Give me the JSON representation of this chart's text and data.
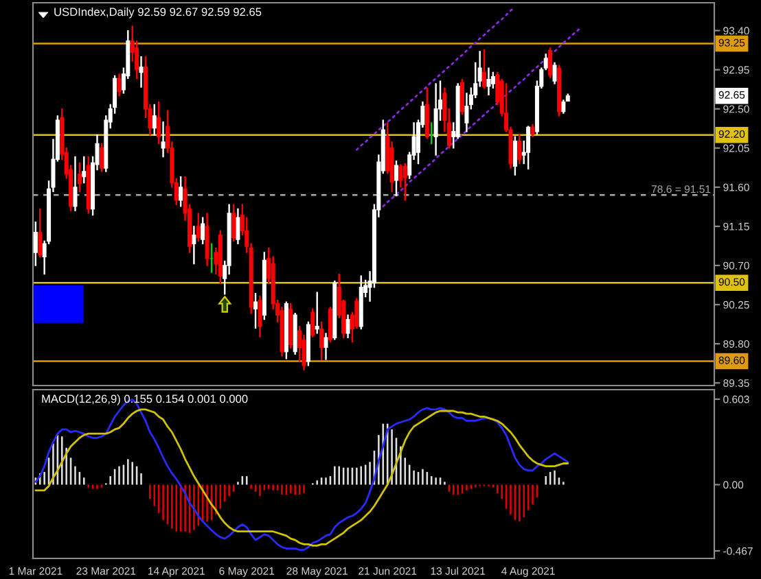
{
  "chart_data": [
    {
      "type": "candlestick",
      "title": "USDIndex,Daily 92.59 92.67 92.59 92.65",
      "categories": [
        null,
        null,
        null,
        null,
        null,
        null,
        null,
        null,
        null,
        null,
        null,
        null,
        null,
        null,
        null,
        null,
        null,
        null,
        null,
        null,
        null,
        null,
        null,
        null,
        null,
        null,
        null,
        null,
        null,
        null,
        null,
        null,
        null,
        null,
        null,
        null,
        null,
        null,
        null,
        null,
        null,
        null,
        null,
        null,
        null,
        null,
        null,
        null,
        null,
        null,
        null,
        null,
        null,
        null,
        null,
        null,
        null,
        null,
        null,
        null,
        null,
        null,
        null,
        null,
        null,
        null,
        null,
        null,
        null,
        null,
        null,
        null,
        null,
        null,
        null,
        null,
        null,
        null,
        null,
        null,
        null,
        null,
        null,
        null,
        null,
        null,
        null,
        null,
        null,
        null,
        null,
        null,
        null,
        null,
        null,
        null,
        null,
        null,
        null,
        null,
        null,
        null,
        null,
        null,
        null,
        null,
        null,
        null,
        null,
        null,
        null,
        null,
        null,
        null,
        null,
        null,
        null,
        null,
        null,
        null,
        null,
        null,
        null,
        null,
        null,
        null,
        null,
        null,
        null,
        null,
        null,
        null,
        null,
        null,
        null,
        null,
        null,
        null,
        null,
        null,
        null,
        null,
        null,
        null,
        null,
        null,
        null,
        null,
        null,
        null,
        null,
        null,
        null,
        null,
        null
      ],
      "ohlc": [
        [
          90.85,
          91.2,
          90.7,
          91.08
        ],
        [
          91.08,
          91.35,
          90.8,
          90.82
        ],
        [
          90.8,
          90.98,
          90.6,
          90.95
        ],
        [
          90.98,
          91.67,
          90.95,
          91.58
        ],
        [
          91.6,
          92.15,
          91.55,
          91.92
        ],
        [
          91.92,
          92.42,
          91.9,
          92.37
        ],
        [
          92.4,
          92.5,
          91.92,
          91.98
        ],
        [
          92.0,
          92.05,
          91.7,
          91.75
        ],
        [
          91.8,
          91.85,
          91.33,
          91.38
        ],
        [
          91.38,
          91.95,
          91.33,
          91.6
        ],
        [
          91.75,
          91.88,
          91.55,
          91.64
        ],
        [
          91.72,
          91.95,
          91.65,
          91.78
        ],
        [
          91.85,
          91.95,
          91.3,
          91.35
        ],
        [
          91.35,
          91.95,
          91.28,
          91.88
        ],
        [
          91.86,
          92.2,
          91.8,
          92.1
        ],
        [
          92.05,
          92.1,
          91.78,
          91.82
        ],
        [
          91.82,
          92.42,
          91.78,
          92.37
        ],
        [
          92.35,
          92.55,
          92.28,
          92.5
        ],
        [
          92.52,
          92.88,
          92.45,
          92.85
        ],
        [
          92.85,
          92.9,
          92.65,
          92.7
        ],
        [
          92.72,
          92.97,
          92.68,
          92.9
        ],
        [
          92.88,
          93.4,
          92.85,
          93.28
        ],
        [
          93.28,
          93.45,
          93.05,
          93.15
        ],
        [
          93.2,
          93.28,
          92.85,
          92.95
        ],
        [
          92.92,
          93.1,
          92.75,
          92.98
        ],
        [
          92.98,
          93.1,
          92.4,
          92.5
        ],
        [
          92.5,
          92.55,
          92.2,
          92.28
        ],
        [
          92.28,
          92.55,
          92.2,
          92.42
        ],
        [
          92.4,
          92.58,
          92.1,
          92.18
        ],
        [
          92.05,
          92.35,
          91.95,
          92.12
        ],
        [
          92.3,
          92.48,
          92.0,
          92.05
        ],
        [
          92.05,
          92.12,
          91.6,
          91.65
        ],
        [
          91.65,
          91.7,
          91.4,
          91.45
        ],
        [
          91.45,
          91.72,
          91.38,
          91.6
        ],
        [
          91.58,
          91.72,
          91.22,
          91.3
        ],
        [
          91.35,
          91.4,
          90.85,
          90.92
        ],
        [
          90.95,
          91.15,
          90.72,
          91.05
        ],
        [
          91.15,
          91.3,
          90.98,
          91.02
        ],
        [
          91.0,
          91.25,
          90.95,
          91.18
        ],
        [
          91.15,
          91.3,
          90.7,
          90.78
        ],
        [
          90.78,
          90.95,
          90.62,
          90.78
        ],
        [
          90.85,
          90.9,
          90.6,
          90.72
        ],
        [
          91.05,
          91.1,
          90.5,
          90.58
        ],
        [
          90.55,
          90.75,
          90.37,
          90.7
        ],
        [
          90.7,
          91.4,
          90.6,
          91.3
        ],
        [
          91.3,
          91.4,
          90.98,
          91.02
        ],
        [
          91.0,
          91.35,
          90.95,
          91.25
        ],
        [
          91.28,
          91.4,
          91.05,
          91.1
        ],
        [
          91.1,
          91.25,
          90.85,
          90.92
        ],
        [
          90.9,
          90.95,
          90.15,
          90.22
        ],
        [
          90.2,
          90.38,
          89.98,
          90.28
        ],
        [
          90.3,
          90.35,
          89.88,
          90.0
        ],
        [
          90.13,
          90.85,
          90.08,
          90.76
        ],
        [
          90.78,
          90.9,
          90.5,
          90.55
        ],
        [
          90.72,
          90.8,
          90.2,
          90.26
        ],
        [
          90.26,
          90.3,
          90.05,
          90.13
        ],
        [
          90.18,
          90.22,
          89.66,
          89.71
        ],
        [
          89.71,
          90.28,
          89.63,
          90.26
        ],
        [
          90.2,
          90.26,
          89.75,
          89.79
        ],
        [
          89.71,
          90.15,
          89.68,
          90.13
        ],
        [
          89.95,
          90.0,
          89.6,
          89.76
        ],
        [
          89.84,
          89.9,
          89.5,
          89.55
        ],
        [
          89.6,
          90.05,
          89.55,
          90.02
        ],
        [
          90.16,
          90.2,
          89.88,
          89.9
        ],
        [
          89.97,
          90.39,
          89.92,
          90.0
        ],
        [
          89.97,
          90.05,
          89.62,
          89.76
        ],
        [
          89.76,
          89.92,
          89.62,
          89.87
        ],
        [
          90.2,
          90.22,
          89.82,
          89.85
        ],
        [
          89.87,
          90.52,
          89.85,
          90.5
        ],
        [
          90.45,
          90.6,
          90.1,
          90.13
        ],
        [
          90.29,
          90.3,
          89.87,
          89.92
        ],
        [
          89.92,
          90.13,
          89.87,
          90.08
        ],
        [
          90.13,
          90.16,
          89.82,
          89.97
        ],
        [
          90.29,
          90.32,
          89.98,
          90.0
        ],
        [
          90.0,
          90.58,
          89.97,
          90.45
        ],
        [
          90.39,
          90.53,
          90.34,
          90.47
        ],
        [
          90.45,
          90.63,
          90.29,
          90.52
        ],
        [
          90.5,
          91.4,
          90.45,
          91.34
        ],
        [
          91.34,
          91.97,
          91.26,
          91.89
        ],
        [
          91.79,
          92.37,
          91.76,
          92.26
        ],
        [
          92.18,
          92.34,
          91.76,
          91.79
        ],
        [
          92.05,
          92.12,
          91.55,
          91.66
        ],
        [
          91.68,
          91.9,
          91.5,
          91.85
        ],
        [
          91.84,
          91.86,
          91.6,
          91.68
        ],
        [
          91.84,
          91.87,
          91.45,
          91.71
        ],
        [
          91.74,
          92.0,
          91.7,
          91.97
        ],
        [
          91.97,
          92.34,
          91.92,
          92.18
        ],
        [
          92.0,
          92.37,
          91.87,
          92.34
        ],
        [
          92.32,
          92.58,
          92.29,
          92.53
        ],
        [
          92.55,
          92.74,
          92.16,
          92.18
        ],
        [
          92.2,
          92.34,
          92.1,
          92.2
        ],
        [
          92.18,
          92.79,
          91.97,
          92.5
        ],
        [
          92.5,
          92.82,
          92.37,
          92.6
        ],
        [
          92.68,
          92.74,
          92.24,
          92.37
        ],
        [
          92.34,
          92.5,
          92.05,
          92.08
        ],
        [
          92.18,
          92.34,
          92.05,
          92.24
        ],
        [
          92.18,
          92.79,
          92.16,
          92.76
        ],
        [
          92.8,
          92.84,
          92.44,
          92.47
        ],
        [
          92.34,
          92.68,
          92.24,
          92.53
        ],
        [
          92.55,
          92.74,
          92.5,
          92.66
        ],
        [
          92.66,
          93.03,
          92.63,
          92.79
        ],
        [
          92.82,
          93.16,
          92.76,
          92.97
        ],
        [
          92.92,
          93.18,
          92.74,
          92.76
        ],
        [
          92.76,
          92.97,
          92.66,
          92.84
        ],
        [
          92.79,
          92.92,
          92.74,
          92.87
        ],
        [
          92.89,
          92.92,
          92.55,
          92.58
        ],
        [
          92.82,
          92.84,
          92.42,
          92.45
        ],
        [
          92.45,
          92.79,
          92.24,
          92.26
        ],
        [
          92.26,
          92.29,
          91.82,
          91.87
        ],
        [
          91.84,
          92.18,
          91.74,
          92.13
        ],
        [
          92.13,
          92.21,
          91.87,
          91.92
        ],
        [
          91.97,
          92.13,
          91.87,
          92.0
        ],
        [
          92.0,
          92.3,
          91.81,
          92.29
        ],
        [
          92.29,
          92.32,
          92.18,
          92.21
        ],
        [
          92.24,
          92.82,
          92.21,
          92.76
        ],
        [
          92.76,
          92.97,
          92.74,
          92.95
        ],
        [
          92.97,
          93.13,
          92.95,
          93.08
        ],
        [
          93.17,
          93.2,
          92.86,
          92.89
        ],
        [
          92.82,
          93.03,
          92.79,
          93.0
        ],
        [
          92.97,
          93.0,
          92.42,
          92.47
        ],
        [
          92.47,
          92.6,
          92.45,
          92.58
        ],
        [
          92.59,
          92.67,
          92.59,
          92.65
        ],
        null,
        null,
        null,
        null,
        null,
        null,
        null,
        null,
        null,
        null,
        null,
        null,
        null,
        null,
        null,
        null,
        null,
        null,
        null,
        null,
        null,
        null,
        null,
        null,
        null,
        null,
        null,
        null,
        null,
        null,
        null,
        null,
        null
      ],
      "colors": [
        "#ffffff",
        "#ff0000",
        "#ffffff",
        "#ffffff",
        "#ffffff",
        "#ffffff",
        "#ff0000",
        "#ff0000",
        "#ff0000",
        "#ffffff",
        "#ff0000",
        "#ffffff",
        "#ff0000",
        "#ffffff",
        "#ffffff",
        "#ff0000",
        "#ffffff",
        "#ffffff",
        "#ffffff",
        "#ff0000",
        "#ffffff",
        "#ffffff",
        "#ff0000",
        "#ff0000",
        "#ffffff",
        "#ff0000",
        "#ff0000",
        "#ffffff",
        "#ff0000",
        "#ffffff",
        "#ff0000",
        "#ff0000",
        "#ff0000",
        "#ffffff",
        "#ff0000",
        "#ff0000",
        "#ffffff",
        "#ff0000",
        "#ffffff",
        "#ff0000",
        "#00d000",
        "#ff0000",
        "#ff0000",
        "#ffffff",
        "#ffffff",
        "#ff0000",
        "#ffffff",
        "#ff0000",
        "#ff0000",
        "#ff0000",
        "#ffffff",
        "#ff0000",
        "#ffffff",
        "#ff0000",
        "#ff0000",
        "#ff0000",
        "#ff0000",
        "#ffffff",
        "#ff0000",
        "#ffffff",
        "#ff0000",
        "#ff0000",
        "#ffffff",
        "#ff0000",
        "#ffffff",
        "#ff0000",
        "#ffffff",
        "#ff0000",
        "#ffffff",
        "#ff0000",
        "#ff0000",
        "#ffffff",
        "#ff0000",
        "#ff0000",
        "#ffffff",
        "#ffffff",
        "#ffffff",
        "#ffffff",
        "#ffffff",
        "#ffffff",
        "#ff0000",
        "#ff0000",
        "#ffffff",
        "#ff0000",
        "#ff0000",
        "#ffffff",
        "#ffffff",
        "#ffffff",
        "#ffffff",
        "#ff0000",
        "#00d000",
        "#ffffff",
        "#ffffff",
        "#ff0000",
        "#ff0000",
        "#ffffff",
        "#ffffff",
        "#ff0000",
        "#ffffff",
        "#ffffff",
        "#ffffff",
        "#ffffff",
        "#ff0000",
        "#ffffff",
        "#ffffff",
        "#ff0000",
        "#ff0000",
        "#ff0000",
        "#ff0000",
        "#ffffff",
        "#ff0000",
        "#ffffff",
        "#ffffff",
        "#ff0000",
        "#ffffff",
        "#ffffff",
        "#ffffff",
        "#ff0000",
        "#ffffff",
        "#ff0000",
        "#ffffff",
        "#ffffff",
        null,
        null,
        null,
        null,
        null,
        null,
        null,
        null,
        null,
        null,
        null,
        null,
        null,
        null,
        null,
        null,
        null,
        null,
        null,
        null,
        null,
        null,
        null,
        null,
        null,
        null,
        null,
        null,
        null,
        null,
        null,
        null,
        null
      ],
      "series": [
        {
          "type": "line",
          "color": "#8a2be2",
          "line_style": "dotted",
          "values": [
            null,
            null,
            null,
            null,
            null,
            null,
            null,
            null,
            null,
            null,
            null,
            null,
            null,
            null,
            null,
            null,
            null,
            null,
            null,
            null,
            null,
            null,
            null,
            null,
            null,
            null,
            null,
            null,
            null,
            null,
            null,
            null,
            null,
            null,
            null,
            null,
            null,
            null,
            null,
            null,
            null,
            null,
            null,
            null,
            null,
            null,
            null,
            null,
            null,
            null,
            null,
            null,
            null,
            null,
            null,
            null,
            null,
            null,
            null,
            null,
            null,
            null,
            null,
            null,
            null,
            null,
            null,
            null,
            null,
            null,
            null,
            null,
            null,
            92.03,
            92.08,
            92.12,
            92.17,
            92.21,
            92.26,
            92.3,
            92.35,
            92.39,
            92.44,
            92.49,
            92.53,
            92.58,
            92.62,
            92.67,
            92.71,
            92.76,
            92.81,
            92.85,
            92.9,
            92.94,
            92.99,
            93.03,
            93.08,
            93.12,
            93.17,
            93.22,
            93.26,
            93.31,
            93.35,
            93.4,
            93.44,
            93.49,
            93.53,
            93.58,
            93.63,
            93.67,
            null,
            null,
            null,
            null,
            null,
            null,
            null,
            null,
            null,
            null,
            null,
            null,
            null,
            null,
            null,
            null,
            null,
            null,
            null,
            null,
            null,
            null,
            null,
            null,
            null,
            null,
            null,
            null,
            null,
            null,
            null,
            null,
            null,
            null,
            null,
            null,
            null,
            null,
            null,
            null,
            null,
            null,
            null,
            null,
            null
          ]
        },
        {
          "type": "line",
          "color": "#8a2be2",
          "line_style": "dotted",
          "values": [
            null,
            null,
            null,
            null,
            null,
            null,
            null,
            null,
            null,
            null,
            null,
            null,
            null,
            null,
            null,
            null,
            null,
            null,
            null,
            null,
            null,
            null,
            null,
            null,
            null,
            null,
            null,
            null,
            null,
            null,
            null,
            null,
            null,
            null,
            null,
            null,
            null,
            null,
            null,
            null,
            null,
            null,
            null,
            null,
            null,
            null,
            null,
            null,
            null,
            null,
            null,
            null,
            null,
            null,
            null,
            null,
            null,
            null,
            null,
            null,
            null,
            null,
            null,
            null,
            null,
            null,
            null,
            null,
            null,
            null,
            null,
            null,
            null,
            null,
            null,
            null,
            null,
            null,
            null,
            91.38,
            91.43,
            91.47,
            91.52,
            91.56,
            91.61,
            91.66,
            91.7,
            91.75,
            91.79,
            91.84,
            91.88,
            91.93,
            91.98,
            92.02,
            92.07,
            92.11,
            92.16,
            92.2,
            92.25,
            92.3,
            92.34,
            92.39,
            92.43,
            92.48,
            92.52,
            92.57,
            92.62,
            92.66,
            92.71,
            92.75,
            92.8,
            92.84,
            92.89,
            92.94,
            92.98,
            93.03,
            93.07,
            93.12,
            93.16,
            93.21,
            93.26,
            93.3,
            93.35,
            93.39,
            93.44,
            null,
            null,
            null,
            null,
            null,
            null,
            null,
            null,
            null,
            null,
            null,
            null,
            null,
            null,
            null,
            null,
            null,
            null,
            null,
            null,
            null,
            null,
            null,
            null,
            null,
            null,
            null,
            null,
            null,
            null
          ]
        }
      ],
      "ylim": [
        89.32,
        93.72
      ],
      "yticks": [
        {
          "value": 93.4,
          "label": "93.40"
        },
        92.95,
        {
          "value": 92.5,
          "label": "92.50"
        },
        92.05,
        {
          "value": 91.6,
          "label": "91.60"
        },
        91.15,
        {
          "value": 90.7,
          "label": "90.70"
        },
        90.25,
        {
          "value": 89.8,
          "label": "89.80"
        },
        89.35
      ],
      "ref_lines": [
        {
          "axis": "y",
          "value": 93.25,
          "label": "93.25",
          "color": "#e09a10"
        },
        {
          "axis": "y",
          "value": 92.2,
          "label": "92.20",
          "color": "#e0c010"
        },
        {
          "axis": "y",
          "value": 91.51,
          "label": "78.6 = 91.51",
          "color": "#a8a8a8",
          "line_style": "dashed"
        },
        {
          "axis": "y",
          "value": 90.5,
          "label": "90.50",
          "color": "#e0c010"
        },
        {
          "axis": "y",
          "value": 89.6,
          "label": "89.60",
          "color": "#e09a10"
        }
      ],
      "annotations": [
        {
          "text": "92.65",
          "y": 92.65
        }
      ]
    },
    {
      "type": "bar",
      "title": "MACD(12,26,9) 0.155 0.154 0.001 0.000",
      "categories": [
        "1 Mar 2021",
        null,
        null,
        null,
        null,
        null,
        null,
        null,
        null,
        null,
        null,
        null,
        null,
        null,
        null,
        null,
        "23 Mar 2021",
        null,
        null,
        null,
        null,
        null,
        null,
        null,
        null,
        null,
        null,
        null,
        null,
        null,
        null,
        null,
        "14 Apr 2021",
        null,
        null,
        null,
        null,
        null,
        null,
        null,
        null,
        null,
        null,
        null,
        null,
        null,
        null,
        null,
        "6 May 2021",
        null,
        null,
        null,
        null,
        null,
        null,
        null,
        null,
        null,
        null,
        null,
        null,
        null,
        null,
        null,
        "28 May 2021",
        null,
        null,
        null,
        null,
        null,
        null,
        null,
        null,
        null,
        null,
        null,
        null,
        null,
        null,
        null,
        "21 Jun 2021",
        null,
        null,
        null,
        null,
        null,
        null,
        null,
        null,
        null,
        null,
        null,
        null,
        null,
        null,
        null,
        "13 Jul 2021",
        null,
        null,
        null,
        null,
        null,
        null,
        null,
        null,
        null,
        null,
        null,
        null,
        null,
        null,
        null,
        "4 Aug 2021",
        null,
        null,
        null,
        null,
        null,
        null,
        null,
        null,
        null,
        null,
        null,
        null,
        null,
        null,
        null,
        null,
        null,
        null,
        null,
        null,
        null,
        null,
        null,
        null,
        null,
        null,
        null,
        null,
        null,
        null,
        null,
        null,
        null,
        null,
        null,
        null,
        null,
        null,
        null,
        null,
        null,
        null
      ],
      "series": [
        {
          "color": "#e0e0e0",
          "values": [
            0.05,
            0.08,
            0.09,
            0.19,
            0.29,
            0.35,
            0.34,
            0.26,
            0.19,
            0.13,
            0.09,
            0.05,
            null,
            null,
            null,
            null,
            0.01,
            0.06,
            0.11,
            0.13,
            0.14,
            0.18,
            0.16,
            0.13,
            0.08,
            null,
            null,
            null,
            null,
            null,
            null,
            null,
            null,
            null,
            null,
            null,
            null,
            null,
            null,
            null,
            null,
            null,
            null,
            null,
            null,
            null,
            0.02,
            0.06,
            0.06,
            null,
            null,
            null,
            null,
            null,
            null,
            null,
            null,
            null,
            null,
            null,
            null,
            null,
            null,
            0.01,
            0.03,
            0.05,
            0.05,
            0.06,
            0.13,
            0.13,
            0.12,
            0.12,
            0.12,
            0.12,
            0.13,
            0.14,
            0.16,
            0.24,
            0.35,
            0.43,
            0.43,
            0.39,
            0.33,
            0.27,
            0.19,
            0.14,
            0.1,
            0.09,
            0.11,
            0.09,
            0.06,
            0.05,
            0.05,
            0.02,
            null,
            null,
            null,
            null,
            null,
            null,
            null,
            null,
            null,
            null,
            null,
            null,
            null,
            null,
            null,
            null,
            null,
            null,
            null,
            null,
            null,
            null,
            0.06,
            0.09,
            0.1,
            0.05,
            0.02,
            null,
            null,
            null,
            null,
            null,
            null,
            null,
            null,
            null,
            null,
            null,
            null,
            null,
            null,
            null,
            null,
            null,
            null,
            null,
            null,
            null,
            null,
            null,
            null,
            null,
            null,
            null,
            null,
            null,
            null,
            null,
            null,
            null,
            null
          ]
        },
        {
          "color": "#e00000",
          "values": [
            null,
            null,
            null,
            null,
            null,
            null,
            null,
            null,
            null,
            null,
            null,
            null,
            -0.02,
            -0.03,
            -0.03,
            -0.02,
            null,
            null,
            null,
            null,
            null,
            null,
            null,
            null,
            null,
            null,
            -0.1,
            -0.15,
            -0.2,
            -0.25,
            -0.28,
            -0.31,
            -0.33,
            -0.33,
            -0.33,
            -0.34,
            -0.32,
            -0.29,
            -0.26,
            -0.26,
            -0.25,
            -0.21,
            -0.17,
            -0.12,
            -0.08,
            -0.05,
            null,
            null,
            null,
            -0.03,
            -0.05,
            -0.08,
            -0.04,
            -0.03,
            -0.04,
            -0.04,
            -0.07,
            -0.07,
            -0.06,
            -0.07,
            -0.07,
            -0.06,
            null,
            null,
            null,
            null,
            null,
            null,
            null,
            null,
            null,
            null,
            null,
            null,
            null,
            null,
            null,
            null,
            null,
            null,
            null,
            null,
            null,
            null,
            null,
            null,
            null,
            null,
            null,
            null,
            null,
            null,
            null,
            null,
            -0.05,
            -0.07,
            -0.07,
            -0.06,
            -0.04,
            -0.03,
            -0.02,
            -0.01,
            -0.01,
            -0.01,
            -0.02,
            -0.06,
            -0.1,
            -0.17,
            -0.21,
            -0.25,
            -0.26,
            -0.23,
            -0.18,
            -0.14,
            -0.09,
            null,
            null,
            null,
            null,
            null,
            null,
            null,
            null,
            null,
            null,
            null,
            null,
            null,
            null,
            null,
            null,
            null,
            null,
            null,
            null,
            null,
            null,
            null,
            null,
            null,
            null,
            null,
            null,
            null,
            null,
            null,
            null,
            null,
            null,
            null,
            null,
            null,
            null,
            null,
            null
          ]
        },
        {
          "type": "line",
          "color": "#2a2aff",
          "values": [
            0.02,
            0.06,
            0.13,
            0.23,
            0.3,
            0.36,
            0.39,
            0.39,
            0.37,
            0.38,
            0.37,
            0.36,
            0.34,
            0.33,
            0.33,
            0.34,
            0.36,
            0.42,
            0.48,
            0.52,
            0.56,
            0.59,
            0.6,
            0.57,
            0.51,
            0.45,
            0.37,
            0.32,
            0.26,
            0.19,
            0.13,
            0.08,
            0.04,
            -0.01,
            -0.06,
            -0.13,
            -0.17,
            -0.22,
            -0.26,
            -0.29,
            -0.32,
            -0.35,
            -0.37,
            -0.38,
            -0.36,
            -0.33,
            -0.3,
            -0.28,
            -0.3,
            -0.35,
            -0.39,
            -0.37,
            -0.35,
            -0.36,
            -0.39,
            -0.42,
            -0.44,
            -0.45,
            -0.45,
            -0.45,
            -0.46,
            -0.46,
            -0.44,
            -0.41,
            -0.4,
            -0.38,
            -0.36,
            -0.35,
            -0.3,
            -0.27,
            -0.25,
            -0.23,
            -0.22,
            -0.2,
            -0.17,
            -0.13,
            -0.05,
            0.04,
            0.17,
            0.27,
            0.39,
            0.41,
            0.43,
            0.44,
            0.45,
            0.46,
            0.48,
            0.51,
            0.53,
            0.54,
            0.53,
            0.53,
            0.54,
            0.53,
            0.51,
            0.48,
            0.47,
            0.47,
            0.45,
            0.45,
            0.45,
            0.46,
            0.47,
            0.47,
            0.46,
            0.44,
            0.4,
            0.35,
            0.27,
            0.19,
            0.14,
            0.11,
            0.1,
            0.1,
            0.13,
            0.15,
            0.18,
            0.2,
            0.22,
            0.2,
            0.18,
            0.16,
            null,
            null,
            null,
            null,
            null,
            null,
            null,
            null,
            null,
            null,
            null,
            null,
            null,
            null,
            null,
            null,
            null,
            null,
            null,
            null,
            null,
            null,
            null,
            null,
            null,
            null,
            null,
            null,
            null,
            null,
            null,
            null,
            null
          ]
        },
        {
          "type": "line",
          "color": "#d2c200",
          "values": [
            -0.04,
            -0.04,
            -0.04,
            -0.01,
            0.05,
            0.1,
            0.16,
            0.22,
            0.27,
            0.3,
            0.33,
            0.35,
            0.36,
            0.36,
            0.36,
            0.36,
            0.36,
            0.37,
            0.39,
            0.4,
            0.43,
            0.47,
            0.5,
            0.52,
            0.53,
            0.53,
            0.52,
            0.51,
            0.48,
            0.46,
            0.41,
            0.37,
            0.31,
            0.25,
            0.18,
            0.12,
            0.06,
            0.01,
            -0.04,
            -0.09,
            -0.14,
            -0.18,
            -0.23,
            -0.27,
            -0.3,
            -0.32,
            -0.33,
            -0.33,
            -0.33,
            -0.33,
            -0.33,
            -0.33,
            -0.33,
            -0.33,
            -0.33,
            -0.34,
            -0.35,
            -0.36,
            -0.38,
            -0.39,
            -0.41,
            -0.42,
            -0.42,
            -0.43,
            -0.43,
            -0.42,
            -0.42,
            -0.4,
            -0.38,
            -0.36,
            -0.34,
            -0.31,
            -0.29,
            -0.27,
            -0.25,
            -0.22,
            -0.19,
            -0.15,
            -0.1,
            -0.05,
            0.0,
            0.07,
            0.15,
            0.23,
            0.31,
            0.37,
            0.41,
            0.43,
            0.45,
            0.47,
            0.49,
            0.51,
            0.52,
            0.52,
            0.52,
            0.52,
            0.51,
            0.51,
            0.5,
            0.5,
            0.49,
            0.48,
            0.48,
            0.47,
            0.46,
            0.45,
            0.43,
            0.4,
            0.37,
            0.33,
            0.28,
            0.24,
            0.2,
            0.17,
            0.15,
            0.14,
            0.13,
            0.13,
            0.13,
            0.14,
            0.15,
            0.15,
            null,
            null,
            null,
            null,
            null,
            null,
            null,
            null,
            null,
            null,
            null,
            null,
            null,
            null,
            null,
            null,
            null,
            null,
            null,
            null,
            null,
            null,
            null,
            null,
            null,
            null,
            null,
            null,
            null,
            null,
            null,
            null,
            null
          ]
        }
      ],
      "ylim": [
        -0.52,
        0.67
      ],
      "yticks": [
        0.603,
        {
          "value": 0,
          "label": "0.00"
        },
        -0.467
      ]
    }
  ]
}
